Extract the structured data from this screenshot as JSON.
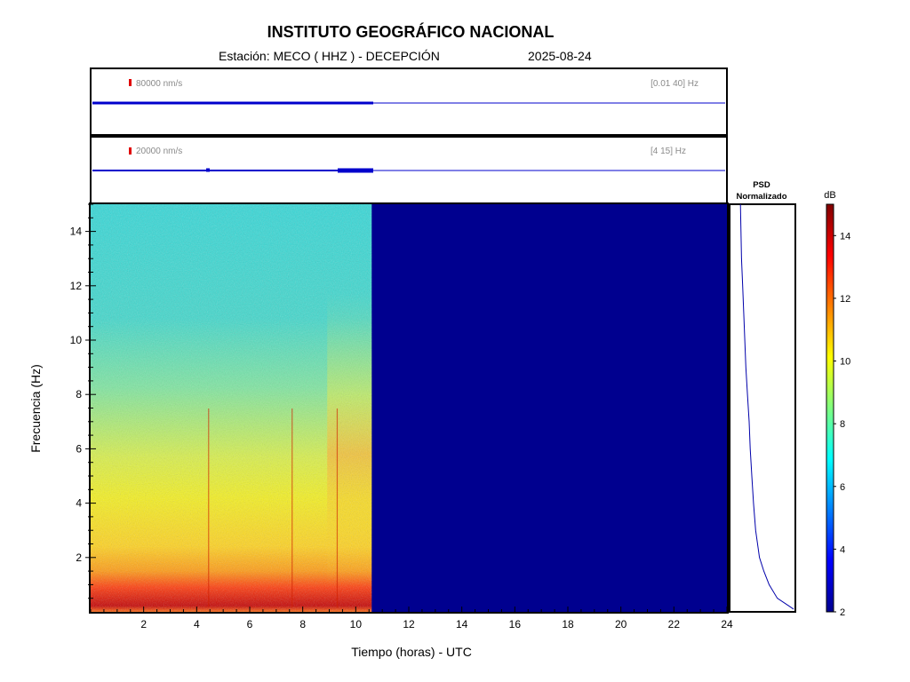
{
  "header": {
    "title": "INSTITUTO GEOGRÁFICO NACIONAL",
    "station_label": "Estación:  MECO ( HHZ ) - DECEPCIÓN",
    "date": "2025-08-24"
  },
  "traces": [
    {
      "scale_label": "80000 nm/s",
      "band_label": "[0.01 40] Hz",
      "color": "#0000cc"
    },
    {
      "scale_label": "20000 nm/s",
      "band_label": "[4 15] Hz",
      "color": "#0000cc"
    }
  ],
  "psd": {
    "title_line1": "PSD",
    "title_line2": "Normalizado"
  },
  "chart_data": {
    "type": "heatmap",
    "xlabel": "Tiempo (horas) - UTC",
    "ylabel": "Frecuencia  (Hz)",
    "xlim": [
      0,
      24
    ],
    "ylim": [
      0,
      15
    ],
    "xticks": [
      2,
      4,
      6,
      8,
      10,
      12,
      14,
      16,
      18,
      20,
      22,
      24
    ],
    "yticks": [
      2,
      4,
      6,
      8,
      10,
      12,
      14
    ],
    "data_end_hour": 10.6,
    "colorbar": {
      "label": "dB",
      "range": [
        2,
        15
      ],
      "ticks": [
        2,
        4,
        6,
        8,
        10,
        12,
        14
      ]
    },
    "spectrogram_profile": {
      "frequency_hz": [
        0.2,
        1,
        2,
        3,
        4,
        5,
        6,
        7,
        8,
        9,
        10,
        11,
        12,
        13,
        14,
        15
      ],
      "level_db": [
        13.5,
        12,
        10.6,
        10.2,
        10,
        9.6,
        9.1,
        8.6,
        8.2,
        7.8,
        7.5,
        7.2,
        7,
        6.8,
        6.6,
        6.5
      ]
    },
    "psd_normalized": {
      "frequency_hz": [
        0.1,
        0.5,
        1,
        1.5,
        2,
        3,
        4,
        5,
        6,
        7,
        8,
        9,
        10,
        11,
        12,
        13,
        14,
        15
      ],
      "value": [
        1.0,
        0.7,
        0.55,
        0.45,
        0.37,
        0.3,
        0.26,
        0.23,
        0.2,
        0.18,
        0.15,
        0.12,
        0.1,
        0.08,
        0.06,
        0.04,
        0.03,
        0.02
      ]
    }
  }
}
